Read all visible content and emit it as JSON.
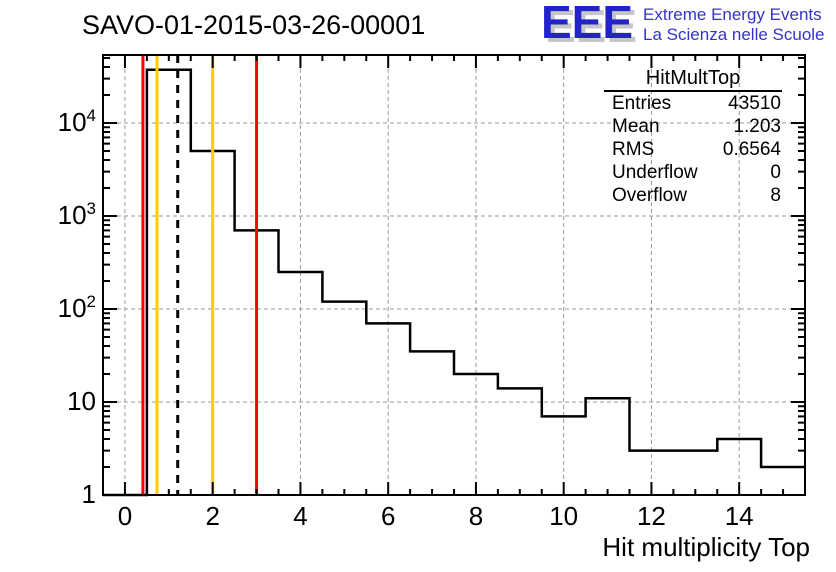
{
  "header": {
    "title": "SAVO-01-2015-03-26-00001"
  },
  "logo": {
    "acronym": "EEE",
    "line1": "Extreme Energy Events",
    "line2": "La Scienza nelle Scuole",
    "acronym_color": "#2323cc",
    "text_color": "#3333cc",
    "shadow_color": "#c6c6c6"
  },
  "stats": {
    "title": "HitMultTop",
    "rows": [
      {
        "label": "Entries",
        "value": "43510"
      },
      {
        "label": "Mean",
        "value": "1.203"
      },
      {
        "label": "RMS",
        "value": "0.6564"
      },
      {
        "label": "Underflow",
        "value": "0"
      },
      {
        "label": "Overflow",
        "value": "8"
      }
    ]
  },
  "chart_data": {
    "type": "bar",
    "style": "step-outline-histogram",
    "title": "SAVO-01-2015-03-26-00001",
    "xlabel": "Hit multiplicity Top",
    "ylabel": "",
    "x_range": [
      -0.5,
      15.5
    ],
    "bin_width": 1,
    "categories": [
      0,
      1,
      2,
      3,
      4,
      5,
      6,
      7,
      8,
      9,
      10,
      11,
      12,
      13,
      14,
      15
    ],
    "values": [
      0,
      37300,
      5000,
      700,
      250,
      120,
      70,
      35,
      20,
      14,
      7,
      11,
      3,
      3,
      4,
      2
    ],
    "y_scale": "log",
    "ylim": [
      1,
      53700
    ],
    "histogram_color": "#000000",
    "grid": {
      "color": "#9a9a9a",
      "style": "dashed",
      "x_at": [
        0,
        2,
        4,
        6,
        8,
        10,
        12,
        14
      ],
      "y_at": [
        10,
        100,
        1000,
        10000
      ]
    },
    "x_ticks_labeled": [
      0,
      2,
      4,
      6,
      8,
      10,
      12,
      14
    ],
    "x_tick_minor_step": 0.5,
    "y_ticks": [
      {
        "v": 1,
        "label": "1",
        "exp": ""
      },
      {
        "v": 10,
        "label": "10",
        "exp": ""
      },
      {
        "v": 100,
        "label": "10",
        "exp": "2"
      },
      {
        "v": 1000,
        "label": "10",
        "exp": "3"
      },
      {
        "v": 10000,
        "label": "10",
        "exp": "4"
      }
    ],
    "marker_lines": [
      {
        "name": "alarm-low",
        "x": 0.41,
        "color": "#ff0000",
        "style": "solid"
      },
      {
        "name": "warn-low",
        "x": 0.73,
        "color": "#ffcc00",
        "style": "solid"
      },
      {
        "name": "mean-line",
        "x": 1.203,
        "color": "#000000",
        "style": "dashed"
      },
      {
        "name": "warn-high",
        "x": 2.0,
        "color": "#ffcc00",
        "style": "solid"
      },
      {
        "name": "alarm-high",
        "x": 3.0,
        "color": "#ff0000",
        "style": "solid"
      }
    ],
    "legend": "none"
  }
}
